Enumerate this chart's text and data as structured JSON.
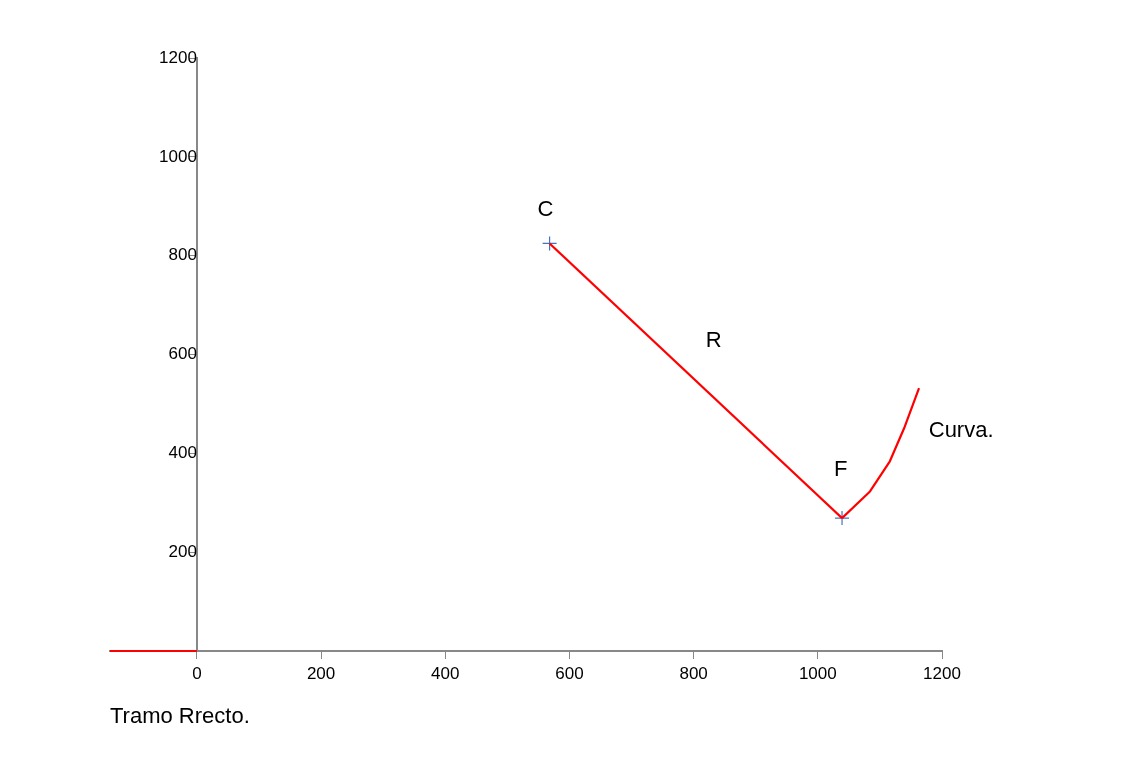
{
  "chart_data": {
    "type": "line",
    "xlim": [
      -140,
      1200
    ],
    "xticks": [
      0,
      200,
      400,
      600,
      800,
      1000,
      1200
    ],
    "ylim": [
      0,
      1200
    ],
    "yticks": [
      {
        "value": 0,
        "label": null
      },
      200,
      400,
      600,
      800,
      1000,
      1200
    ],
    "grid": false,
    "legend": false,
    "series": [
      {
        "color": "#ff0000",
        "x": [
          -140,
          0
        ],
        "values": [
          0,
          0
        ],
        "marker": "none"
      },
      {
        "color": "#ff0000",
        "x": [
          568,
          1039
        ],
        "values": [
          825,
          269
        ],
        "marker": "none"
      },
      {
        "color": "#ff0000",
        "x": [
          1039,
          1084,
          1116,
          1140,
          1163
        ],
        "values": [
          269,
          323,
          384,
          454,
          532
        ],
        "marker": "none"
      },
      {
        "type": "scatter",
        "color": "#4472c4",
        "x": [
          568,
          1039
        ],
        "values": [
          825,
          269
        ],
        "marker": "cross"
      }
    ],
    "annotations": [
      {
        "text": "C",
        "x": 568,
        "y": 825
      },
      {
        "text": "R",
        "x": 803.5,
        "y": 547
      },
      {
        "text": "F",
        "x": 1039,
        "y": 269
      },
      {
        "text": "Curva.",
        "x": 1140,
        "y": 454
      },
      {
        "text": "Tramo Rrecto.",
        "x": -140,
        "y": 0
      }
    ]
  }
}
